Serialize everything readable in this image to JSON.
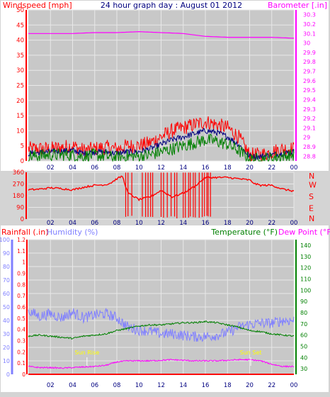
{
  "colors": {
    "background": "#d4d4d4",
    "plot_background": "#c8c8c8",
    "grid": "#e8e8e8",
    "red": "#ff0000",
    "green": "#008000",
    "navy": "#000080",
    "magenta": "#ff00ff",
    "lightblue": "#8080ff",
    "yellow": "#ffff00",
    "white": "#ffffff"
  },
  "chart_data": [
    {
      "type": "line",
      "title": "24 hour graph day : August 01 2012",
      "left_axis_label": "Windspeed [mph]",
      "right_axis_label": "Barometer [.in]",
      "x_ticks": [
        "02",
        "04",
        "06",
        "08",
        "10",
        "12",
        "14",
        "16",
        "18",
        "20",
        "22",
        "00"
      ],
      "left_ticks": [
        "0",
        "5",
        "10",
        "15",
        "20",
        "25",
        "30",
        "35",
        "40",
        "45",
        "50"
      ],
      "right_ticks": [
        "28.8",
        "28.9",
        "29",
        "29.1",
        "29.2",
        "29.3",
        "29.4",
        "29.5",
        "29.6",
        "29.7",
        "29.8",
        "29.9",
        "30",
        "30.1",
        "30.2",
        "30.3"
      ],
      "ylim_left": [
        0,
        50
      ],
      "ylim_right": [
        28.75,
        30.35
      ],
      "xlim_hours": [
        0,
        24
      ],
      "series": [
        {
          "role": "gust",
          "color": "red",
          "axis": "left",
          "noise": 2.5,
          "x": [
            0,
            2,
            4,
            5,
            6,
            7,
            8,
            9,
            10,
            11,
            12,
            13,
            14,
            15,
            16,
            17,
            18,
            19,
            19.5,
            20,
            21,
            22,
            23,
            24
          ],
          "y": [
            4,
            4,
            5,
            3.5,
            4,
            4.5,
            4,
            5,
            5,
            6,
            8,
            10,
            11,
            12,
            13,
            12,
            11,
            8,
            5,
            2,
            2,
            3,
            4,
            4
          ]
        },
        {
          "role": "average",
          "color": "navy",
          "axis": "left",
          "noise": 1,
          "x": [
            0,
            2,
            4,
            5,
            6,
            7,
            8,
            9,
            10,
            11,
            12,
            13,
            14,
            15,
            16,
            17,
            18,
            19,
            19.5,
            20,
            21,
            22,
            23,
            24
          ],
          "y": [
            2.5,
            3,
            3.5,
            2.5,
            3,
            3,
            2.5,
            3,
            3,
            4,
            5.5,
            7,
            8,
            9,
            10,
            9.5,
            8,
            5.5,
            3.5,
            1.5,
            1.5,
            2,
            2.5,
            3
          ]
        },
        {
          "role": "wind",
          "color": "green",
          "axis": "left",
          "noise": 2.2,
          "x": [
            0,
            2,
            4,
            5,
            6,
            7,
            8,
            9,
            10,
            11,
            12,
            13,
            14,
            15,
            16,
            17,
            18,
            19,
            19.5,
            20,
            21,
            22,
            23,
            24
          ],
          "y": [
            1.5,
            2,
            2,
            1.5,
            2,
            1.5,
            1,
            1.5,
            1.5,
            2,
            3,
            4,
            5,
            6,
            7,
            6.5,
            5.5,
            3.5,
            2,
            0.5,
            0.5,
            1,
            1.5,
            2
          ]
        },
        {
          "role": "barometer",
          "color": "magenta",
          "axis": "right",
          "noise": 0,
          "x": [
            0,
            2,
            4,
            6,
            8,
            10,
            12,
            14,
            16,
            18,
            20,
            22,
            24
          ],
          "y": [
            30.1,
            30.1,
            30.1,
            30.11,
            30.11,
            30.12,
            30.11,
            30.1,
            30.07,
            30.06,
            30.06,
            30.06,
            30.05
          ]
        }
      ]
    },
    {
      "type": "scatter",
      "left_ticks": [
        "0",
        "90",
        "180",
        "270",
        "360"
      ],
      "right_labels": [
        "N",
        "W",
        "S",
        "E",
        "N"
      ],
      "ylim": [
        0,
        360
      ],
      "x_ticks": [
        "02",
        "04",
        "06",
        "08",
        "10",
        "12",
        "14",
        "16",
        "18",
        "20",
        "22",
        "00"
      ],
      "xlim_hours": [
        0,
        24
      ],
      "series": [
        {
          "role": "direction",
          "color": "red",
          "x": [
            0,
            1,
            2,
            3,
            4,
            5,
            6,
            7,
            7.5,
            8,
            8.5,
            9,
            10,
            11,
            12,
            13,
            14,
            15,
            16,
            17,
            18,
            19,
            20,
            20.5,
            21,
            22,
            23,
            24
          ],
          "y": [
            225,
            230,
            240,
            235,
            225,
            245,
            260,
            265,
            280,
            310,
            330,
            200,
            150,
            170,
            220,
            170,
            200,
            250,
            320,
            320,
            320,
            310,
            300,
            270,
            260,
            260,
            230,
            215
          ],
          "jumps": [
            [
              8.8,
              9.6
            ],
            [
              10.3,
              11.5
            ],
            [
              12.0,
              13.5
            ],
            [
              14.0,
              16.5
            ]
          ]
        }
      ]
    },
    {
      "type": "line",
      "left_axis_label": "Rainfall (.in)",
      "left2_axis_label": "Humidity (%)",
      "right_axis_label": "Temperature (°F)",
      "right2_axis_label": "Dew Point (°F)",
      "rain_ticks": [
        "0",
        "0.1",
        "0.2",
        "0.3",
        "0.4",
        "0.5",
        "0.6",
        "0.7",
        "0.8",
        "0.9",
        "1",
        "1.1",
        "1.2"
      ],
      "humidity_ticks": [
        "0",
        "10",
        "20",
        "30",
        "40",
        "50",
        "60",
        "70",
        "80",
        "90",
        "100"
      ],
      "temp_ticks": [
        "30",
        "40",
        "50",
        "60",
        "70",
        "80",
        "90",
        "100",
        "110",
        "120",
        "130",
        "140"
      ],
      "ylim_rain": [
        0,
        1.2
      ],
      "ylim_humidity": [
        0,
        100
      ],
      "ylim_temp": [
        25,
        145
      ],
      "x_ticks": [
        "02",
        "04",
        "06",
        "08",
        "10",
        "12",
        "14",
        "16",
        "18",
        "20",
        "22",
        "00"
      ],
      "xlim_hours": [
        0,
        24
      ],
      "annotations": [
        {
          "text": "Sun Rise",
          "x": 5.3
        },
        {
          "text": "Sun Set",
          "x": 20.1
        }
      ],
      "series": [
        {
          "role": "humidity",
          "color": "lightblue",
          "axis": "humidity",
          "noise": 4,
          "x": [
            0,
            1,
            2,
            3,
            4,
            5,
            6,
            7,
            8,
            9,
            10,
            11,
            12,
            13,
            14,
            15,
            16,
            17,
            18,
            19,
            20,
            21,
            22,
            23,
            24
          ],
          "y": [
            47,
            43,
            45,
            42,
            46,
            42,
            44,
            45,
            42,
            35,
            33,
            32,
            30,
            30,
            29,
            28,
            28,
            29,
            31,
            35,
            37,
            38,
            38,
            40,
            40
          ]
        },
        {
          "role": "temperature",
          "color": "green",
          "axis": "temp",
          "noise": 0.7,
          "x": [
            0,
            1,
            2,
            3,
            4,
            5,
            6,
            7,
            8,
            9,
            10,
            11,
            12,
            13,
            14,
            15,
            16,
            17,
            18,
            19,
            20,
            21,
            22,
            23,
            24
          ],
          "y": [
            59,
            60,
            59,
            58,
            57,
            59,
            60,
            61,
            64,
            66,
            68,
            69,
            69,
            70,
            71,
            71,
            72,
            71,
            69,
            67,
            64,
            63,
            61,
            60,
            59
          ]
        },
        {
          "role": "dewpoint",
          "color": "magenta",
          "axis": "temp",
          "noise": 0.6,
          "x": [
            0,
            1,
            2,
            3,
            4,
            5,
            6,
            7,
            8,
            9,
            10,
            11,
            12,
            13,
            14,
            15,
            16,
            17,
            18,
            19,
            20,
            21,
            22,
            23,
            24
          ],
          "y": [
            32,
            31,
            31,
            30.5,
            31,
            31.5,
            32,
            33,
            36,
            37,
            37,
            37,
            37.5,
            38,
            37.5,
            37,
            37,
            37,
            37.5,
            38,
            38,
            37,
            34,
            32,
            32
          ]
        },
        {
          "role": "rainfall",
          "color": "red",
          "axis": "rain",
          "x": [
            0,
            24
          ],
          "y": [
            0,
            0
          ]
        }
      ]
    }
  ]
}
